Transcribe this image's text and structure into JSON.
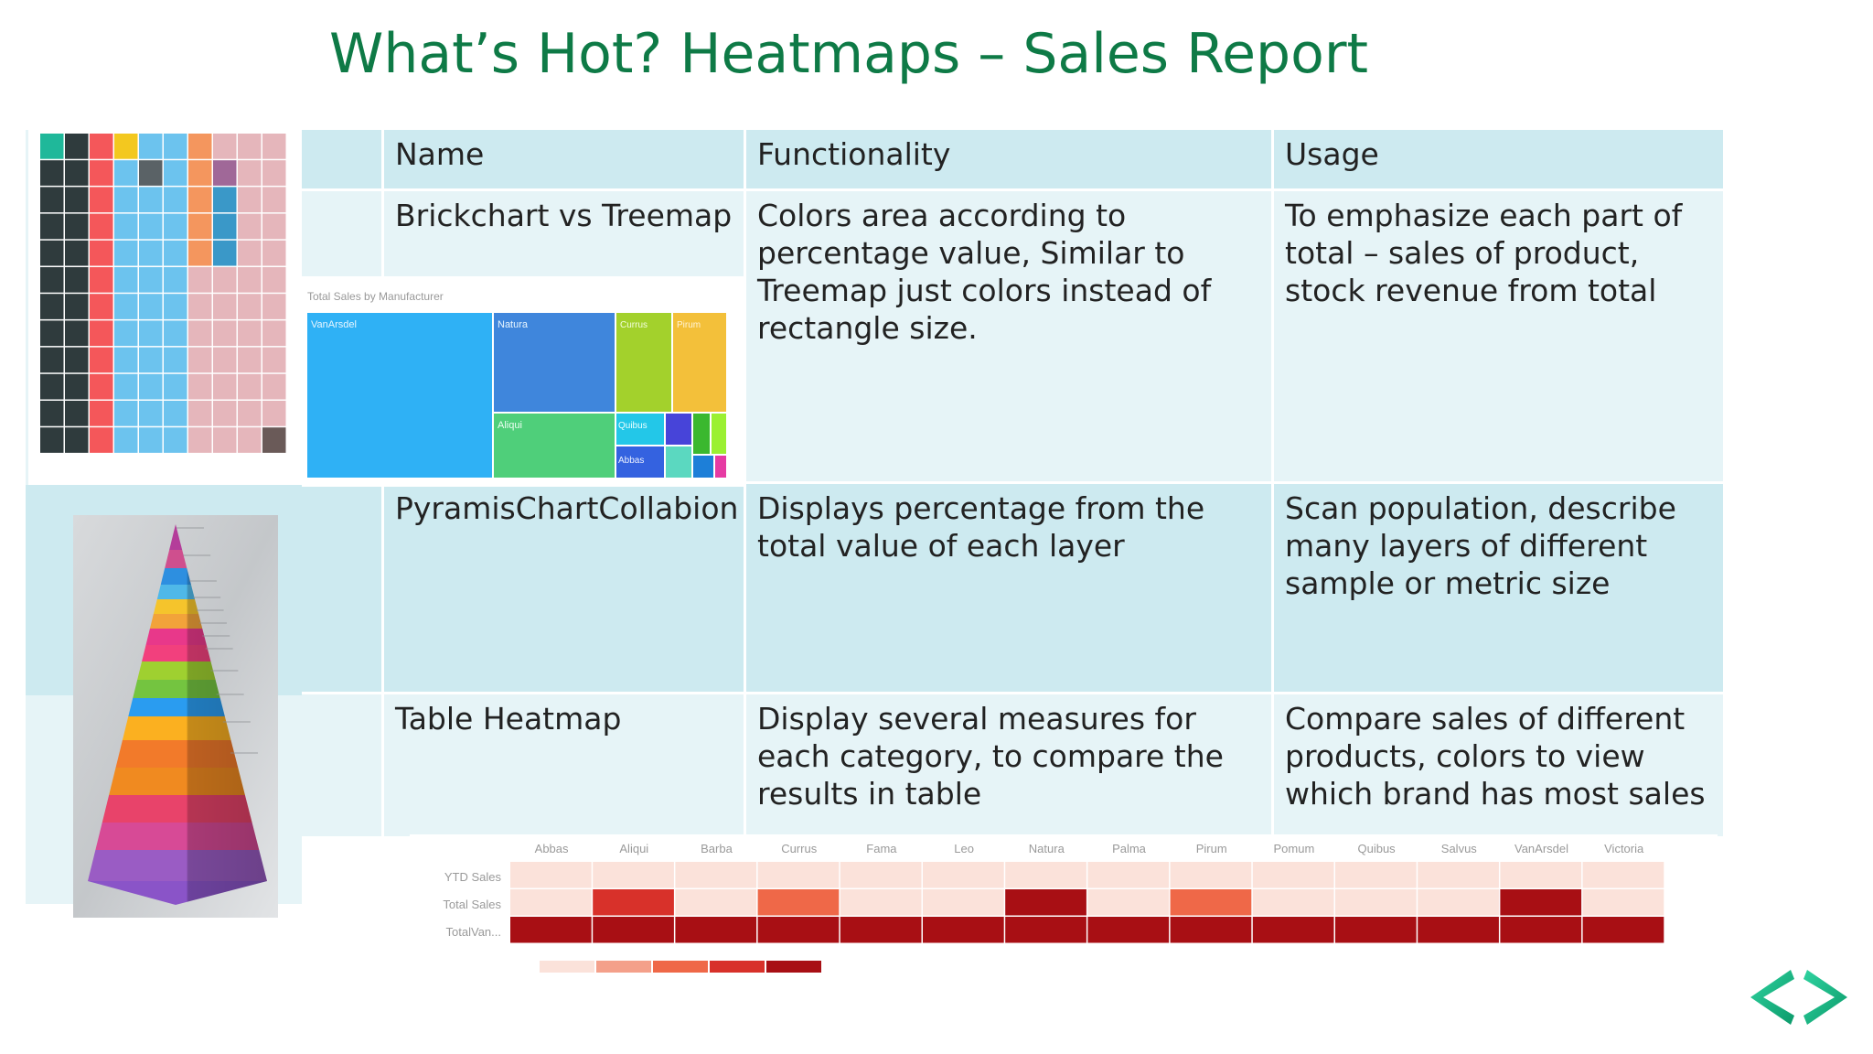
{
  "slide": {
    "title": "What’s Hot? Heatmaps – Sales Report"
  },
  "table": {
    "headers": [
      "Name",
      "Functionality",
      "Usage"
    ],
    "rows": [
      {
        "name": "Brickchart vs Treemap",
        "functionality": "Colors area according to percentage value, Similar to Treemap just colors instead of rectangle size.",
        "usage": "To emphasize each part of total – sales of product, stock revenue from total"
      },
      {
        "name": "PyramisChartCollabion",
        "functionality": "Displays percentage from the total value of each layer",
        "usage": "Scan population, describe many layers of different sample or metric size"
      },
      {
        "name": "Table Heatmap",
        "functionality": "Display several measures for each category, to compare the results in table",
        "usage": "Compare sales of different products, colors to view which brand has most sales"
      }
    ]
  },
  "treemap": {
    "title": "Total Sales by Manufacturer",
    "tiles": [
      "VanArsdel",
      "Natura",
      "Currus",
      "Pirum",
      "Aliqui",
      "Quibus",
      "Abbas"
    ]
  },
  "chart_data": {
    "type": "heatmap",
    "categories": [
      "Abbas",
      "Aliqui",
      "Barba",
      "Currus",
      "Fama",
      "Leo",
      "Natura",
      "Palma",
      "Pirum",
      "Pomum",
      "Quibus",
      "Salvus",
      "VanArsdel",
      "Victoria"
    ],
    "measures": [
      "YTD Sales",
      "Total Sales",
      "TotalVan..."
    ],
    "intensity": [
      [
        0,
        0,
        0,
        0,
        0,
        0,
        0,
        0,
        0,
        0,
        0,
        0,
        0,
        0
      ],
      [
        0,
        3,
        0,
        2,
        0,
        0,
        4,
        0,
        2,
        0,
        0,
        0,
        4,
        0
      ],
      [
        4,
        4,
        4,
        4,
        4,
        4,
        4,
        4,
        4,
        4,
        4,
        4,
        4,
        4
      ]
    ],
    "palette": [
      "#fbe2da",
      "#f4a08a",
      "#ef6848",
      "#d8312a",
      "#a80f14"
    ]
  }
}
